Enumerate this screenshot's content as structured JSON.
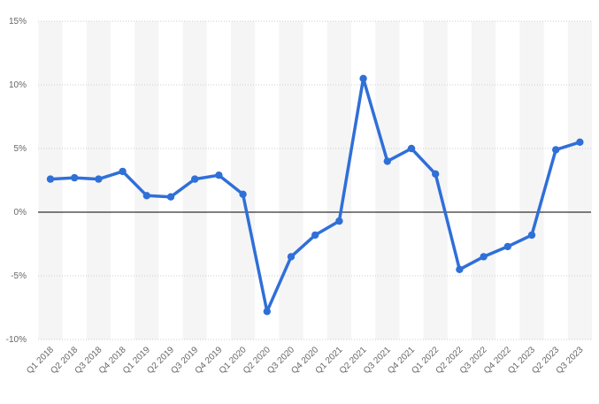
{
  "chart_data": {
    "type": "line",
    "title": "",
    "xlabel": "",
    "ylabel": "",
    "ylim": [
      -10,
      15
    ],
    "y_ticks": [
      {
        "value": -10,
        "label": "-10%"
      },
      {
        "value": -5,
        "label": "-5%"
      },
      {
        "value": 0,
        "label": "0%"
      },
      {
        "value": 5,
        "label": "5%"
      },
      {
        "value": 10,
        "label": "10%"
      },
      {
        "value": 15,
        "label": "15%"
      }
    ],
    "grid": true,
    "grid_style": "dotted",
    "alternating_column_bands": true,
    "zero_line": true,
    "legend": "none",
    "categories": [
      "Q1 2018",
      "Q2 2018",
      "Q3 2018",
      "Q4 2018",
      "Q1 2019",
      "Q2 2019",
      "Q3 2019",
      "Q4 2019",
      "Q1 2020",
      "Q2 2020",
      "Q3 2020",
      "Q4 2020",
      "Q1 2021",
      "Q2 2021",
      "Q3 2021",
      "Q4 2021",
      "Q1 2022",
      "Q2 2022",
      "Q3 2022",
      "Q4 2022",
      "Q1 2023",
      "Q2 2023",
      "Q3 2023"
    ],
    "series": [
      {
        "color": "#2f6fd8",
        "values": [
          2.6,
          2.7,
          2.6,
          3.2,
          1.3,
          1.2,
          2.6,
          2.9,
          1.4,
          -7.8,
          -3.5,
          -1.8,
          -0.7,
          10.5,
          4.0,
          5.0,
          3.0,
          -4.5,
          -3.5,
          -2.7,
          -1.8,
          4.9,
          5.5
        ]
      }
    ],
    "colors": {
      "line": "#2f6fd8",
      "band": "#f5f5f5",
      "grid": "#cccccc",
      "zero_line": "#000000",
      "tick_text": "#666666"
    }
  }
}
